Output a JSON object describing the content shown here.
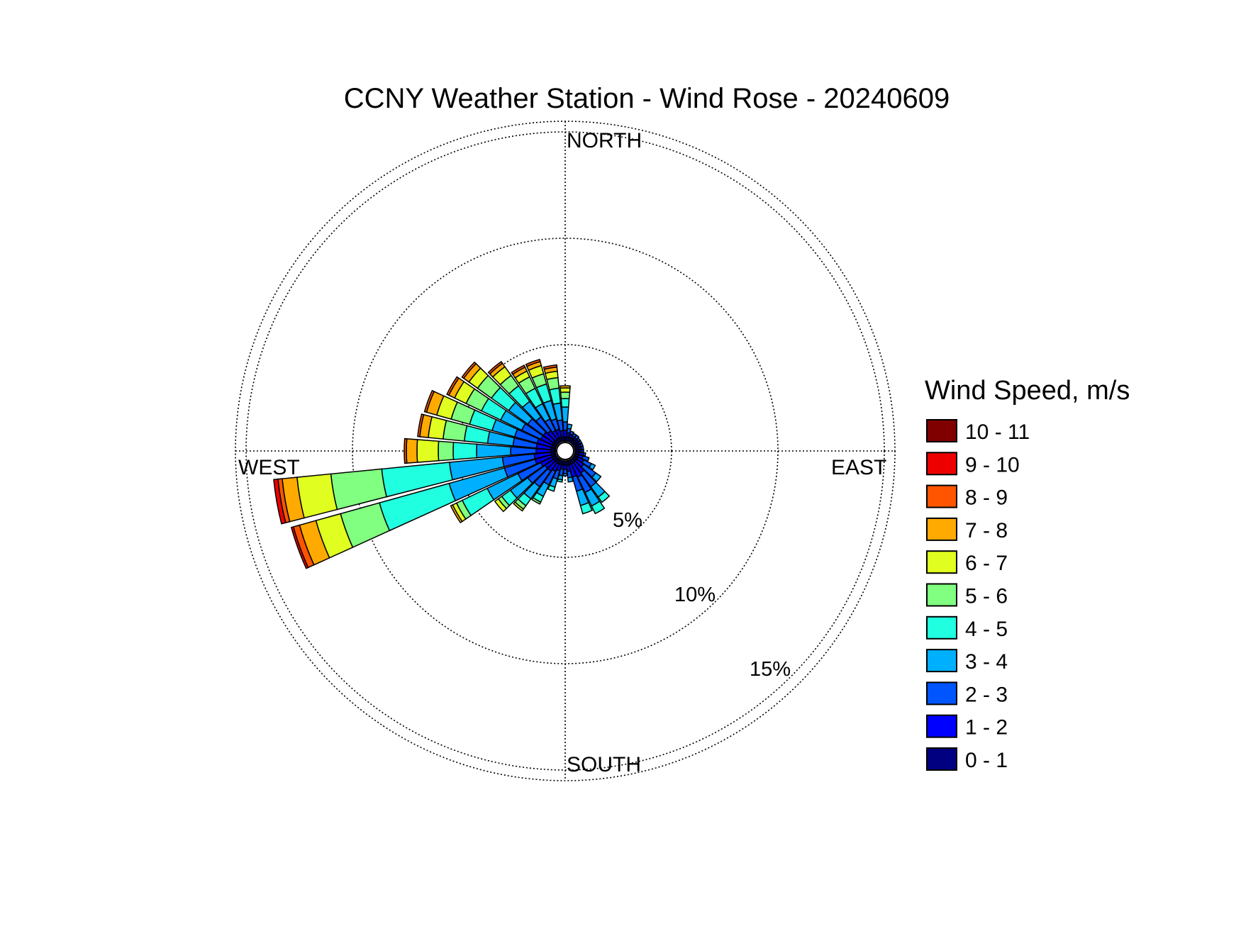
{
  "chart_data": {
    "type": "wind-rose",
    "title": "CCNY Weather Station - Wind Rose - 20240609",
    "directions": [
      "NORTH",
      "EAST",
      "SOUTH",
      "WEST"
    ],
    "radial_ticks": [
      "5%",
      "10%",
      "15%"
    ],
    "radial_values": [
      5,
      10,
      15
    ],
    "r_max": 15.5,
    "legend": {
      "title": "Wind Speed, m/s",
      "placement": "right",
      "bins": [
        {
          "label": "0 - 1",
          "color": "#000080"
        },
        {
          "label": "1 - 2",
          "color": "#0000ff"
        },
        {
          "label": "2 - 3",
          "color": "#0055ff"
        },
        {
          "label": "3 - 4",
          "color": "#00b0ff"
        },
        {
          "label": "4 - 5",
          "color": "#20ffe0"
        },
        {
          "label": "5 - 6",
          "color": "#80ff80"
        },
        {
          "label": "6 - 7",
          "color": "#e0ff20"
        },
        {
          "label": "7 - 8",
          "color": "#ffaa00"
        },
        {
          "label": "8 - 9",
          "color": "#ff5500"
        },
        {
          "label": "9 - 10",
          "color": "#ee0000"
        },
        {
          "label": "10 - 11",
          "color": "#800000"
        }
      ]
    },
    "sector_width_deg": 10,
    "sectors": [
      {
        "direction_deg": 0,
        "cumulative_pct": [
          0.2,
          0.5,
          0.9,
          1.6,
          2.0,
          2.3,
          2.5,
          2.6
        ]
      },
      {
        "direction_deg": 350,
        "cumulative_pct": [
          0.2,
          0.5,
          1.0,
          1.8,
          2.5,
          3.0,
          3.3,
          3.5,
          3.6
        ]
      },
      {
        "direction_deg": 340,
        "cumulative_pct": [
          0.2,
          0.6,
          1.1,
          2.0,
          2.8,
          3.3,
          3.7,
          3.9,
          4.0
        ]
      },
      {
        "direction_deg": 330,
        "cumulative_pct": [
          0.2,
          0.6,
          1.2,
          2.0,
          2.8,
          3.4,
          3.7,
          3.9,
          4.0
        ]
      },
      {
        "direction_deg": 320,
        "cumulative_pct": [
          0.2,
          0.7,
          1.5,
          2.4,
          3.3,
          3.9,
          4.4,
          4.6,
          4.7
        ]
      },
      {
        "direction_deg": 310,
        "cumulative_pct": [
          0.2,
          0.8,
          1.7,
          2.8,
          3.8,
          4.6,
          5.1,
          5.4,
          5.5
        ]
      },
      {
        "direction_deg": 300,
        "cumulative_pct": [
          0.2,
          0.8,
          1.8,
          2.9,
          3.9,
          4.7,
          5.3,
          5.6,
          5.7
        ]
      },
      {
        "direction_deg": 290,
        "cumulative_pct": [
          0.2,
          0.9,
          2.0,
          3.1,
          4.2,
          5.1,
          5.8,
          6.3,
          6.4
        ]
      },
      {
        "direction_deg": 280,
        "cumulative_pct": [
          0.2,
          0.9,
          2.0,
          3.2,
          4.3,
          5.3,
          6.0,
          6.4,
          6.5
        ]
      },
      {
        "direction_deg": 270,
        "cumulative_pct": [
          0.2,
          0.9,
          2.1,
          3.7,
          4.8,
          5.5,
          6.5,
          7.0,
          7.1
        ]
      },
      {
        "direction_deg": 260,
        "cumulative_pct": [
          0.2,
          1.0,
          2.5,
          5.0,
          8.2,
          10.6,
          12.2,
          12.9,
          13.1,
          13.3
        ]
      },
      {
        "direction_deg": 250,
        "cumulative_pct": [
          0.2,
          1.0,
          2.5,
          5.2,
          8.6,
          10.5,
          11.7,
          12.5,
          12.8,
          12.9
        ]
      },
      {
        "direction_deg": 240,
        "cumulative_pct": [
          0.2,
          0.8,
          2.0,
          3.6,
          4.9,
          5.2,
          5.4,
          5.5
        ]
      },
      {
        "direction_deg": 230,
        "cumulative_pct": [
          0.2,
          0.7,
          1.7,
          2.7,
          3.2,
          3.4,
          3.6
        ]
      },
      {
        "direction_deg": 220,
        "cumulative_pct": [
          0.2,
          0.7,
          1.6,
          2.3,
          2.7,
          2.9,
          3.0
        ]
      },
      {
        "direction_deg": 210,
        "cumulative_pct": [
          0.2,
          0.6,
          1.3,
          1.9,
          2.2,
          2.3
        ]
      },
      {
        "direction_deg": 200,
        "cumulative_pct": [
          0.2,
          0.5,
          0.9,
          1.3,
          1.5
        ]
      },
      {
        "direction_deg": 190,
        "cumulative_pct": [
          0.2,
          0.4,
          0.7,
          0.9,
          1.0
        ]
      },
      {
        "direction_deg": 180,
        "cumulative_pct": [
          0.2,
          0.4,
          0.6,
          0.7
        ]
      },
      {
        "direction_deg": 170,
        "cumulative_pct": [
          0.2,
          0.5,
          0.8,
          1.0
        ]
      },
      {
        "direction_deg": 160,
        "cumulative_pct": [
          0.2,
          0.8,
          1.5,
          2.2,
          2.6
        ]
      },
      {
        "direction_deg": 150,
        "cumulative_pct": [
          0.2,
          0.9,
          1.7,
          2.4,
          2.8
        ]
      },
      {
        "direction_deg": 140,
        "cumulative_pct": [
          0.2,
          0.8,
          1.6,
          2.2,
          2.5
        ]
      },
      {
        "direction_deg": 130,
        "cumulative_pct": [
          0.2,
          0.6,
          1.3,
          1.6
        ]
      },
      {
        "direction_deg": 120,
        "cumulative_pct": [
          0.2,
          0.5,
          0.9,
          1.1
        ]
      },
      {
        "direction_deg": 110,
        "cumulative_pct": [
          0.2,
          0.4,
          0.7
        ]
      },
      {
        "direction_deg": 100,
        "cumulative_pct": [
          0.2,
          0.4,
          0.5
        ]
      },
      {
        "direction_deg": 90,
        "cumulative_pct": [
          0.2,
          0.3,
          0.4
        ]
      },
      {
        "direction_deg": 80,
        "cumulative_pct": [
          0.2,
          0.3,
          0.4
        ]
      },
      {
        "direction_deg": 70,
        "cumulative_pct": [
          0.2,
          0.3,
          0.4
        ]
      },
      {
        "direction_deg": 60,
        "cumulative_pct": [
          0.2,
          0.3,
          0.4
        ]
      },
      {
        "direction_deg": 50,
        "cumulative_pct": [
          0.2,
          0.3,
          0.4
        ]
      },
      {
        "direction_deg": 40,
        "cumulative_pct": [
          0.2,
          0.3,
          0.45
        ]
      },
      {
        "direction_deg": 30,
        "cumulative_pct": [
          0.2,
          0.3,
          0.45
        ]
      },
      {
        "direction_deg": 20,
        "cumulative_pct": [
          0.2,
          0.35,
          0.5
        ]
      },
      {
        "direction_deg": 10,
        "cumulative_pct": [
          0.2,
          0.4,
          0.6,
          0.8
        ]
      }
    ],
    "grid": true
  }
}
